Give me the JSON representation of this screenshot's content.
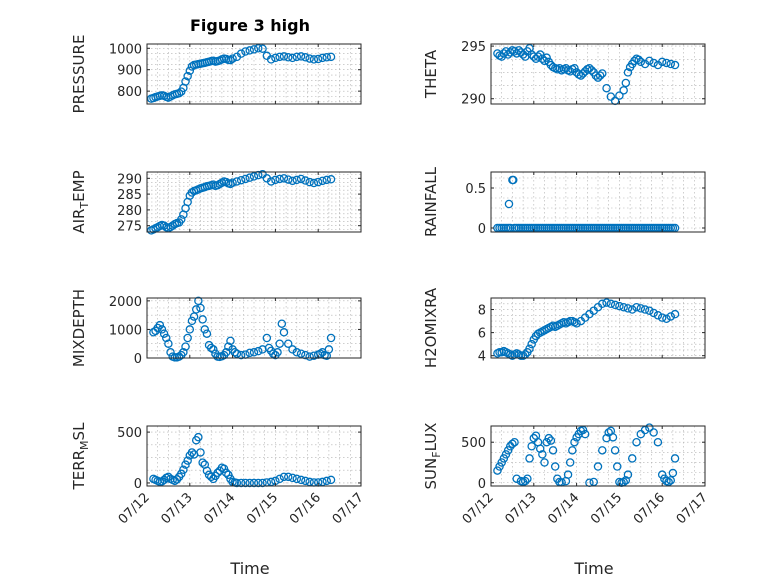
{
  "figure": {
    "title": "Figure 3 high",
    "xlabel": "Time",
    "x_tick_labels": [
      "07/12",
      "07/13",
      "07/14",
      "07/15",
      "07/16",
      "07/17"
    ],
    "marker_color": "#0072BD"
  },
  "chart_data": [
    {
      "type": "scatter",
      "id": "pressure",
      "ylabel": "PRESSURE",
      "xlim": [
        0,
        5
      ],
      "ylim": [
        740,
        1020
      ],
      "yticks": [
        800,
        900,
        1000
      ],
      "grid": true,
      "marker": "circle",
      "x": [
        0.1,
        0.15,
        0.2,
        0.25,
        0.3,
        0.35,
        0.4,
        0.45,
        0.5,
        0.55,
        0.6,
        0.65,
        0.7,
        0.75,
        0.8,
        0.85,
        0.9,
        0.95,
        1.0,
        1.05,
        1.1,
        1.15,
        1.2,
        1.25,
        1.3,
        1.35,
        1.4,
        1.45,
        1.5,
        1.55,
        1.6,
        1.65,
        1.7,
        1.75,
        1.8,
        1.85,
        1.9,
        1.95,
        2.0,
        2.1,
        2.2,
        2.3,
        2.4,
        2.5,
        2.6,
        2.7,
        2.8,
        2.9,
        3.0,
        3.1,
        3.2,
        3.3,
        3.4,
        3.5,
        3.6,
        3.7,
        3.8,
        3.9,
        4.0,
        4.1,
        4.2,
        4.3
      ],
      "y": [
        765,
        768,
        772,
        775,
        778,
        780,
        778,
        773,
        770,
        775,
        780,
        785,
        787,
        790,
        798,
        815,
        845,
        870,
        895,
        915,
        922,
        924,
        926,
        928,
        930,
        932,
        935,
        937,
        940,
        942,
        938,
        940,
        943,
        948,
        952,
        950,
        946,
        945,
        952,
        960,
        975,
        985,
        990,
        995,
        1000,
        998,
        965,
        948,
        955,
        960,
        962,
        958,
        955,
        960,
        962,
        958,
        952,
        948,
        950,
        955,
        958,
        960
      ]
    },
    {
      "type": "scatter",
      "id": "theta",
      "ylabel": "THETA",
      "xlim": [
        0,
        5
      ],
      "ylim": [
        289.5,
        295.2
      ],
      "yticks": [
        290,
        295
      ],
      "grid": true,
      "marker": "circle",
      "x": [
        0.15,
        0.2,
        0.25,
        0.3,
        0.35,
        0.4,
        0.45,
        0.5,
        0.55,
        0.6,
        0.65,
        0.7,
        0.75,
        0.8,
        0.85,
        0.9,
        0.95,
        1.0,
        1.05,
        1.1,
        1.15,
        1.2,
        1.25,
        1.3,
        1.35,
        1.4,
        1.45,
        1.5,
        1.55,
        1.6,
        1.65,
        1.7,
        1.75,
        1.8,
        1.85,
        1.9,
        1.95,
        2.0,
        2.05,
        2.1,
        2.15,
        2.2,
        2.25,
        2.3,
        2.35,
        2.4,
        2.45,
        2.5,
        2.55,
        2.6,
        2.7,
        2.8,
        2.9,
        3.0,
        3.1,
        3.15,
        3.2,
        3.25,
        3.3,
        3.35,
        3.4,
        3.45,
        3.5,
        3.6,
        3.7,
        3.8,
        3.9,
        4.0,
        4.1,
        4.2,
        4.3
      ],
      "y": [
        294.3,
        294.1,
        294.0,
        294.3,
        294.5,
        294.2,
        294.4,
        294.6,
        294.5,
        294.3,
        294.6,
        294.4,
        294.2,
        294.0,
        294.5,
        294.8,
        294.2,
        294.0,
        293.8,
        294.0,
        294.2,
        293.8,
        293.6,
        293.9,
        293.5,
        293.2,
        293.0,
        292.9,
        292.8,
        292.9,
        292.7,
        292.8,
        292.9,
        292.7,
        292.6,
        292.8,
        292.9,
        292.5,
        292.3,
        292.2,
        292.4,
        292.6,
        292.8,
        292.9,
        292.7,
        292.5,
        292.2,
        292.0,
        292.2,
        292.4,
        291.0,
        290.2,
        289.8,
        290.3,
        290.8,
        291.5,
        292.5,
        293.0,
        293.3,
        293.6,
        293.8,
        293.7,
        293.5,
        293.3,
        293.6,
        293.4,
        293.2,
        293.5,
        293.4,
        293.3,
        293.2
      ]
    },
    {
      "type": "scatter",
      "id": "air-temp",
      "ylabel": "AIR_TEMP",
      "xlim": [
        0,
        5
      ],
      "ylim": [
        273,
        292
      ],
      "yticks": [
        275,
        280,
        285,
        290
      ],
      "grid": true,
      "marker": "circle",
      "x": [
        0.1,
        0.15,
        0.2,
        0.25,
        0.3,
        0.35,
        0.4,
        0.45,
        0.5,
        0.55,
        0.6,
        0.65,
        0.7,
        0.75,
        0.8,
        0.85,
        0.9,
        0.95,
        1.0,
        1.05,
        1.1,
        1.15,
        1.2,
        1.25,
        1.3,
        1.35,
        1.4,
        1.45,
        1.5,
        1.55,
        1.6,
        1.65,
        1.7,
        1.75,
        1.8,
        1.85,
        1.9,
        1.95,
        2.0,
        2.1,
        2.2,
        2.3,
        2.4,
        2.5,
        2.6,
        2.7,
        2.8,
        2.9,
        3.0,
        3.1,
        3.2,
        3.3,
        3.4,
        3.5,
        3.6,
        3.7,
        3.8,
        3.9,
        4.0,
        4.1,
        4.2,
        4.3
      ],
      "y": [
        273.5,
        273.8,
        274.2,
        274.5,
        274.9,
        275.2,
        275.0,
        274.5,
        274.2,
        274.6,
        275.0,
        275.5,
        275.8,
        276.0,
        277.0,
        278.5,
        280.5,
        282.5,
        284.5,
        285.5,
        286.0,
        286.2,
        286.5,
        286.8,
        287.0,
        287.2,
        287.5,
        287.6,
        287.8,
        288.0,
        287.6,
        287.8,
        288.2,
        288.6,
        289.0,
        288.8,
        288.4,
        288.2,
        288.6,
        289.0,
        289.4,
        289.8,
        290.2,
        290.6,
        291.0,
        291.3,
        290.0,
        289.0,
        289.5,
        289.8,
        290.0,
        289.6,
        289.2,
        289.5,
        289.8,
        289.3,
        288.8,
        288.5,
        288.8,
        289.2,
        289.5,
        289.7
      ]
    },
    {
      "type": "scatter",
      "id": "rainfall",
      "ylabel": "RAINFALL",
      "xlim": [
        0,
        5
      ],
      "ylim": [
        -0.05,
        0.7
      ],
      "yticks": [
        0,
        0.5
      ],
      "grid": true,
      "marker": "circle",
      "x": [
        0.15,
        0.2,
        0.25,
        0.3,
        0.35,
        0.4,
        0.42,
        0.45,
        0.5,
        0.52,
        0.55,
        0.6,
        0.65,
        0.7,
        0.75,
        0.8,
        0.85,
        0.9,
        0.95,
        1.0,
        1.05,
        1.1,
        1.15,
        1.2,
        1.25,
        1.3,
        1.35,
        1.4,
        1.45,
        1.5,
        1.55,
        1.6,
        1.65,
        1.7,
        1.75,
        1.8,
        1.85,
        1.9,
        1.95,
        2.0,
        2.05,
        2.1,
        2.15,
        2.2,
        2.25,
        2.3,
        2.35,
        2.4,
        2.45,
        2.5,
        2.55,
        2.6,
        2.65,
        2.7,
        2.75,
        2.8,
        2.85,
        2.9,
        2.95,
        3.0,
        3.05,
        3.1,
        3.15,
        3.2,
        3.25,
        3.3,
        3.35,
        3.4,
        3.45,
        3.5,
        3.55,
        3.6,
        3.65,
        3.7,
        3.75,
        3.8,
        3.85,
        3.9,
        3.95,
        4.0,
        4.05,
        4.1,
        4.15,
        4.2,
        4.25,
        4.3
      ],
      "y": [
        0,
        0,
        0,
        0,
        0,
        0,
        0.3,
        0,
        0.6,
        0.6,
        0,
        0,
        0,
        0,
        0,
        0,
        0,
        0,
        0,
        0,
        0,
        0,
        0,
        0,
        0,
        0,
        0,
        0,
        0,
        0,
        0,
        0,
        0,
        0,
        0,
        0,
        0,
        0,
        0,
        0,
        0,
        0,
        0,
        0,
        0,
        0,
        0,
        0,
        0,
        0,
        0,
        0,
        0,
        0,
        0,
        0,
        0,
        0,
        0,
        0,
        0,
        0,
        0,
        0,
        0,
        0,
        0,
        0,
        0,
        0,
        0,
        0,
        0,
        0,
        0,
        0,
        0,
        0,
        0,
        0,
        0,
        0,
        0,
        0,
        0,
        0
      ]
    },
    {
      "type": "scatter",
      "id": "mixdepth",
      "ylabel": "MIXDEPTH",
      "xlim": [
        0,
        5
      ],
      "ylim": [
        0,
        2100
      ],
      "yticks": [
        0,
        1000,
        2000
      ],
      "grid": true,
      "marker": "circle",
      "x": [
        0.15,
        0.2,
        0.25,
        0.3,
        0.35,
        0.4,
        0.45,
        0.5,
        0.55,
        0.6,
        0.65,
        0.7,
        0.75,
        0.8,
        0.85,
        0.9,
        0.95,
        1.0,
        1.05,
        1.1,
        1.15,
        1.2,
        1.25,
        1.3,
        1.35,
        1.4,
        1.45,
        1.5,
        1.55,
        1.6,
        1.65,
        1.7,
        1.75,
        1.8,
        1.85,
        1.9,
        1.95,
        2.0,
        2.05,
        2.1,
        2.2,
        2.3,
        2.4,
        2.5,
        2.6,
        2.7,
        2.8,
        2.85,
        2.9,
        2.95,
        3.0,
        3.05,
        3.1,
        3.15,
        3.2,
        3.3,
        3.4,
        3.5,
        3.6,
        3.7,
        3.8,
        3.9,
        4.0,
        4.05,
        4.1,
        4.15,
        4.2,
        4.25,
        4.3
      ],
      "y": [
        900,
        950,
        1050,
        1150,
        1000,
        850,
        700,
        500,
        200,
        50,
        20,
        20,
        50,
        100,
        200,
        400,
        700,
        1000,
        1300,
        1450,
        1700,
        2000,
        1750,
        1350,
        1000,
        850,
        450,
        350,
        300,
        150,
        50,
        40,
        60,
        100,
        200,
        400,
        600,
        300,
        200,
        150,
        100,
        120,
        180,
        200,
        240,
        300,
        700,
        350,
        250,
        150,
        100,
        200,
        500,
        1200,
        900,
        500,
        300,
        200,
        150,
        100,
        50,
        80,
        120,
        150,
        200,
        100,
        80,
        300,
        700
      ]
    },
    {
      "type": "scatter",
      "id": "h2omixra",
      "ylabel": "H2OMIXRA",
      "xlim": [
        0,
        5
      ],
      "ylim": [
        3.8,
        9
      ],
      "yticks": [
        4,
        6,
        8
      ],
      "grid": true,
      "marker": "circle",
      "x": [
        0.15,
        0.2,
        0.25,
        0.3,
        0.35,
        0.4,
        0.45,
        0.5,
        0.55,
        0.6,
        0.65,
        0.7,
        0.75,
        0.8,
        0.85,
        0.9,
        0.95,
        1.0,
        1.05,
        1.1,
        1.15,
        1.2,
        1.25,
        1.3,
        1.35,
        1.4,
        1.45,
        1.5,
        1.55,
        1.6,
        1.65,
        1.7,
        1.75,
        1.8,
        1.85,
        1.9,
        1.95,
        2.0,
        2.1,
        2.2,
        2.3,
        2.4,
        2.5,
        2.6,
        2.7,
        2.8,
        2.9,
        3.0,
        3.1,
        3.2,
        3.3,
        3.4,
        3.5,
        3.6,
        3.7,
        3.8,
        3.9,
        4.0,
        4.1,
        4.2,
        4.3
      ],
      "y": [
        4.2,
        4.3,
        4.3,
        4.4,
        4.3,
        4.2,
        4.1,
        4.0,
        4.1,
        4.2,
        4.1,
        4.0,
        4.0,
        4.1,
        4.3,
        4.6,
        5.0,
        5.4,
        5.7,
        5.9,
        6.0,
        6.1,
        6.2,
        6.3,
        6.4,
        6.5,
        6.6,
        6.5,
        6.6,
        6.7,
        6.8,
        6.9,
        6.8,
        6.9,
        7.0,
        7.0,
        6.9,
        6.8,
        7.0,
        7.3,
        7.6,
        7.9,
        8.2,
        8.5,
        8.6,
        8.5,
        8.4,
        8.3,
        8.2,
        8.1,
        8.0,
        8.2,
        8.1,
        8.0,
        7.9,
        7.7,
        7.5,
        7.3,
        7.2,
        7.4,
        7.6
      ]
    },
    {
      "type": "scatter",
      "id": "terr-msl",
      "ylabel": "TERR_MSL",
      "xlim": [
        0,
        5
      ],
      "ylim": [
        -30,
        560
      ],
      "yticks": [
        0,
        500
      ],
      "grid": true,
      "marker": "circle",
      "x": [
        0.15,
        0.2,
        0.25,
        0.3,
        0.35,
        0.4,
        0.45,
        0.5,
        0.55,
        0.6,
        0.65,
        0.7,
        0.75,
        0.8,
        0.85,
        0.9,
        0.95,
        1.0,
        1.05,
        1.1,
        1.15,
        1.2,
        1.25,
        1.3,
        1.35,
        1.4,
        1.45,
        1.5,
        1.55,
        1.6,
        1.65,
        1.7,
        1.75,
        1.8,
        1.85,
        1.9,
        1.95,
        2.0,
        2.05,
        2.1,
        2.2,
        2.3,
        2.4,
        2.5,
        2.6,
        2.7,
        2.8,
        2.9,
        3.0,
        3.1,
        3.2,
        3.3,
        3.4,
        3.5,
        3.6,
        3.7,
        3.8,
        3.9,
        4.0,
        4.1,
        4.2,
        4.3
      ],
      "y": [
        40,
        30,
        20,
        10,
        15,
        30,
        50,
        60,
        40,
        30,
        20,
        35,
        60,
        90,
        130,
        180,
        220,
        270,
        300,
        280,
        420,
        450,
        300,
        200,
        180,
        120,
        80,
        60,
        40,
        70,
        100,
        120,
        150,
        140,
        100,
        80,
        40,
        10,
        5,
        0,
        0,
        0,
        0,
        0,
        0,
        0,
        5,
        10,
        20,
        40,
        60,
        60,
        50,
        40,
        30,
        20,
        10,
        5,
        5,
        10,
        20,
        30
      ]
    },
    {
      "type": "scatter",
      "id": "sun-flux",
      "ylabel": "SUN_FLUX",
      "xlim": [
        0,
        5
      ],
      "ylim": [
        -40,
        700
      ],
      "yticks": [
        0,
        500
      ],
      "grid": true,
      "marker": "circle",
      "x": [
        0.15,
        0.2,
        0.25,
        0.3,
        0.35,
        0.4,
        0.45,
        0.5,
        0.55,
        0.6,
        0.7,
        0.75,
        0.8,
        0.85,
        0.9,
        0.95,
        1.0,
        1.05,
        1.1,
        1.15,
        1.2,
        1.25,
        1.3,
        1.35,
        1.4,
        1.45,
        1.5,
        1.55,
        1.6,
        1.65,
        1.75,
        1.8,
        1.85,
        1.9,
        1.95,
        2.0,
        2.05,
        2.1,
        2.15,
        2.2,
        2.3,
        2.4,
        2.5,
        2.6,
        2.7,
        2.75,
        2.8,
        2.85,
        2.9,
        2.95,
        3.0,
        3.05,
        3.1,
        3.15,
        3.2,
        3.3,
        3.4,
        3.5,
        3.6,
        3.7,
        3.8,
        3.9,
        4.0,
        4.05,
        4.1,
        4.15,
        4.2,
        4.25,
        4.3
      ],
      "y": [
        150,
        200,
        250,
        300,
        350,
        400,
        450,
        480,
        500,
        50,
        20,
        10,
        20,
        50,
        300,
        450,
        550,
        580,
        500,
        420,
        350,
        250,
        500,
        550,
        520,
        400,
        200,
        50,
        10,
        5,
        20,
        100,
        250,
        400,
        500,
        560,
        600,
        640,
        650,
        600,
        0,
        10,
        200,
        400,
        550,
        620,
        640,
        560,
        400,
        200,
        10,
        0,
        10,
        30,
        100,
        300,
        500,
        600,
        650,
        680,
        620,
        500,
        100,
        50,
        20,
        10,
        30,
        120,
        300
      ]
    }
  ]
}
